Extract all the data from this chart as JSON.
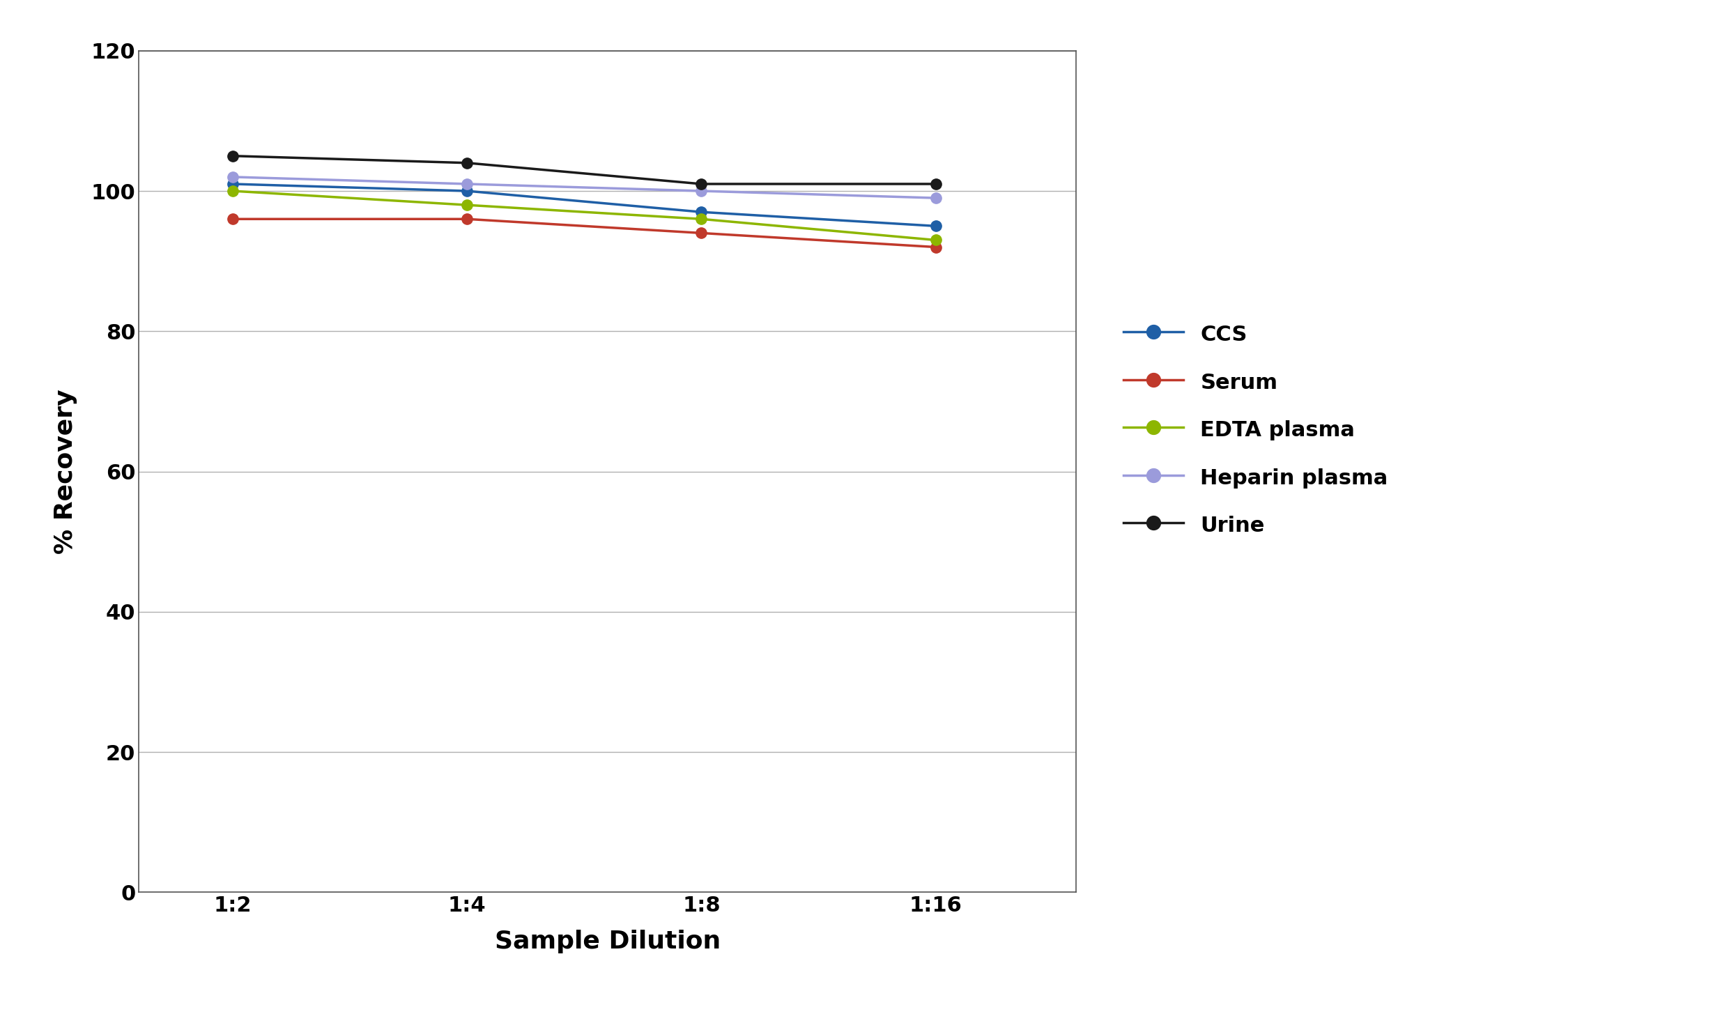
{
  "x_labels": [
    "1:2",
    "1:4",
    "1:8",
    "1:16"
  ],
  "x_positions": [
    0,
    1,
    2,
    3
  ],
  "series": [
    {
      "label": "CCS",
      "color": "#1f5fa6",
      "values": [
        101,
        100,
        97,
        95
      ]
    },
    {
      "label": "Serum",
      "color": "#c0392b",
      "values": [
        96,
        96,
        94,
        92
      ]
    },
    {
      "label": "EDTA plasma",
      "color": "#8db600",
      "values": [
        100,
        98,
        96,
        93
      ]
    },
    {
      "label": "Heparin plasma",
      "color": "#9b9bdb",
      "values": [
        102,
        101,
        100,
        99
      ]
    },
    {
      "label": "Urine",
      "color": "#1a1a1a",
      "values": [
        105,
        104,
        101,
        101
      ]
    }
  ],
  "ylabel": "% Recovery",
  "xlabel": "Sample Dilution",
  "ylim": [
    0,
    120
  ],
  "yticks": [
    0,
    20,
    40,
    60,
    80,
    100,
    120
  ],
  "grid_color": "#b0b0b0",
  "background_color": "#ffffff",
  "axis_label_fontsize": 26,
  "tick_fontsize": 22,
  "legend_fontsize": 22,
  "line_width": 2.5,
  "marker_size": 11
}
